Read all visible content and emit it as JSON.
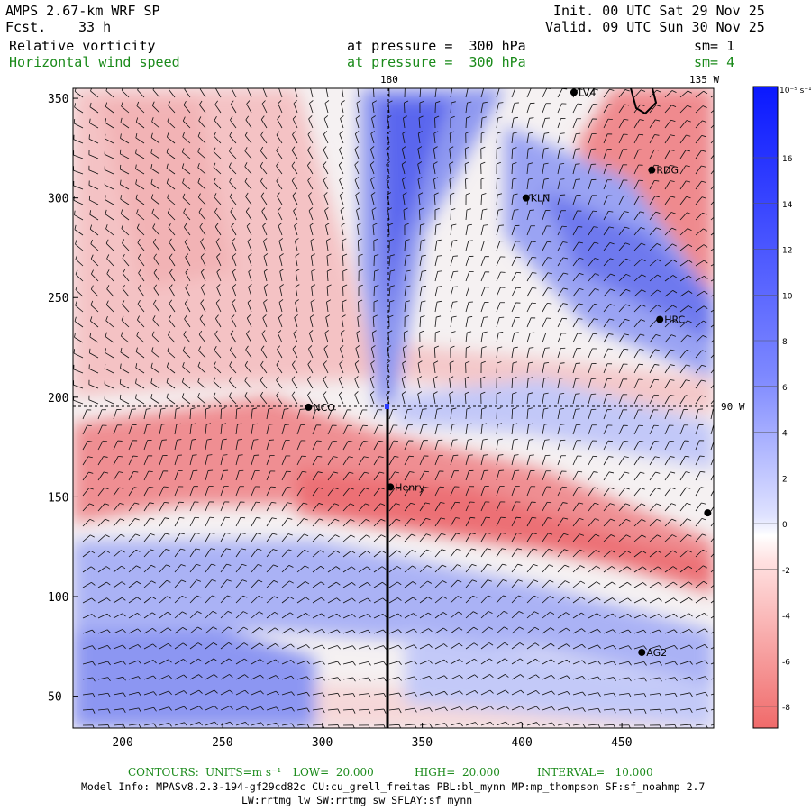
{
  "header": {
    "model": "AMPS 2.67-km WRF SP",
    "fcst_label": "Fcst.",
    "fcst_value": "33 h",
    "init": "Init. 00 UTC Sat 29 Nov 25",
    "valid": "Valid. 09 UTC Sun 30 Nov 25",
    "field1": "Relative vorticity",
    "field1_level": "at pressure =  300 hPa",
    "field1_sm": "sm= 1",
    "field2": "Horizontal wind speed",
    "field2_level": "at pressure =  300 hPa",
    "field2_sm": "sm= 4"
  },
  "map": {
    "x_ticks": [
      "200",
      "250",
      "300",
      "350",
      "400",
      "450"
    ],
    "y_ticks": [
      "350",
      "300",
      "250",
      "200",
      "150",
      "100",
      "50"
    ],
    "lon_label_top_1": "180",
    "lon_label_top_2": "135 W",
    "lon_label_right": "90 W",
    "stations": [
      {
        "name": "LV4",
        "x": 426,
        "y": 353
      },
      {
        "name": "RDG",
        "x": 465,
        "y": 314
      },
      {
        "name": "KLN",
        "x": 402,
        "y": 300
      },
      {
        "name": "HRC",
        "x": 469,
        "y": 239
      },
      {
        "name": "NCO",
        "x": 293,
        "y": 195
      },
      {
        "name": "Henry",
        "x": 334,
        "y": 155
      },
      {
        "name": "AG2",
        "x": 460,
        "y": 72
      },
      {
        "name": "",
        "x": 493,
        "y": 142
      }
    ],
    "colors": {
      "positive": "#e8484a",
      "negative": "#1a2cff",
      "neutral": "#f6f6f6"
    }
  },
  "colorbar": {
    "units": "10⁻⁵ s⁻¹",
    "labels": [
      "16",
      "14",
      "12",
      "10",
      "8",
      "6",
      "4",
      "2",
      "0",
      "-2",
      "-4",
      "-6",
      "-8"
    ]
  },
  "footer": {
    "contours_label": "CONTOURS:",
    "units_label": "UNITS=m s⁻¹",
    "low": "LOW=  20.000",
    "high": "HIGH=  20.000",
    "interval": "INTERVAL=   10.000",
    "model_info": "Model Info: MPASv8.2.3-194-gf29cd82c CU:cu_grell_freitas PBL:bl_mynn MP:mp_thompson SF:sf_noahmp 2.7",
    "model_info2": "LW:rrtmg_lw SW:rrtmg_sw SFLAY:sf_mynn"
  }
}
